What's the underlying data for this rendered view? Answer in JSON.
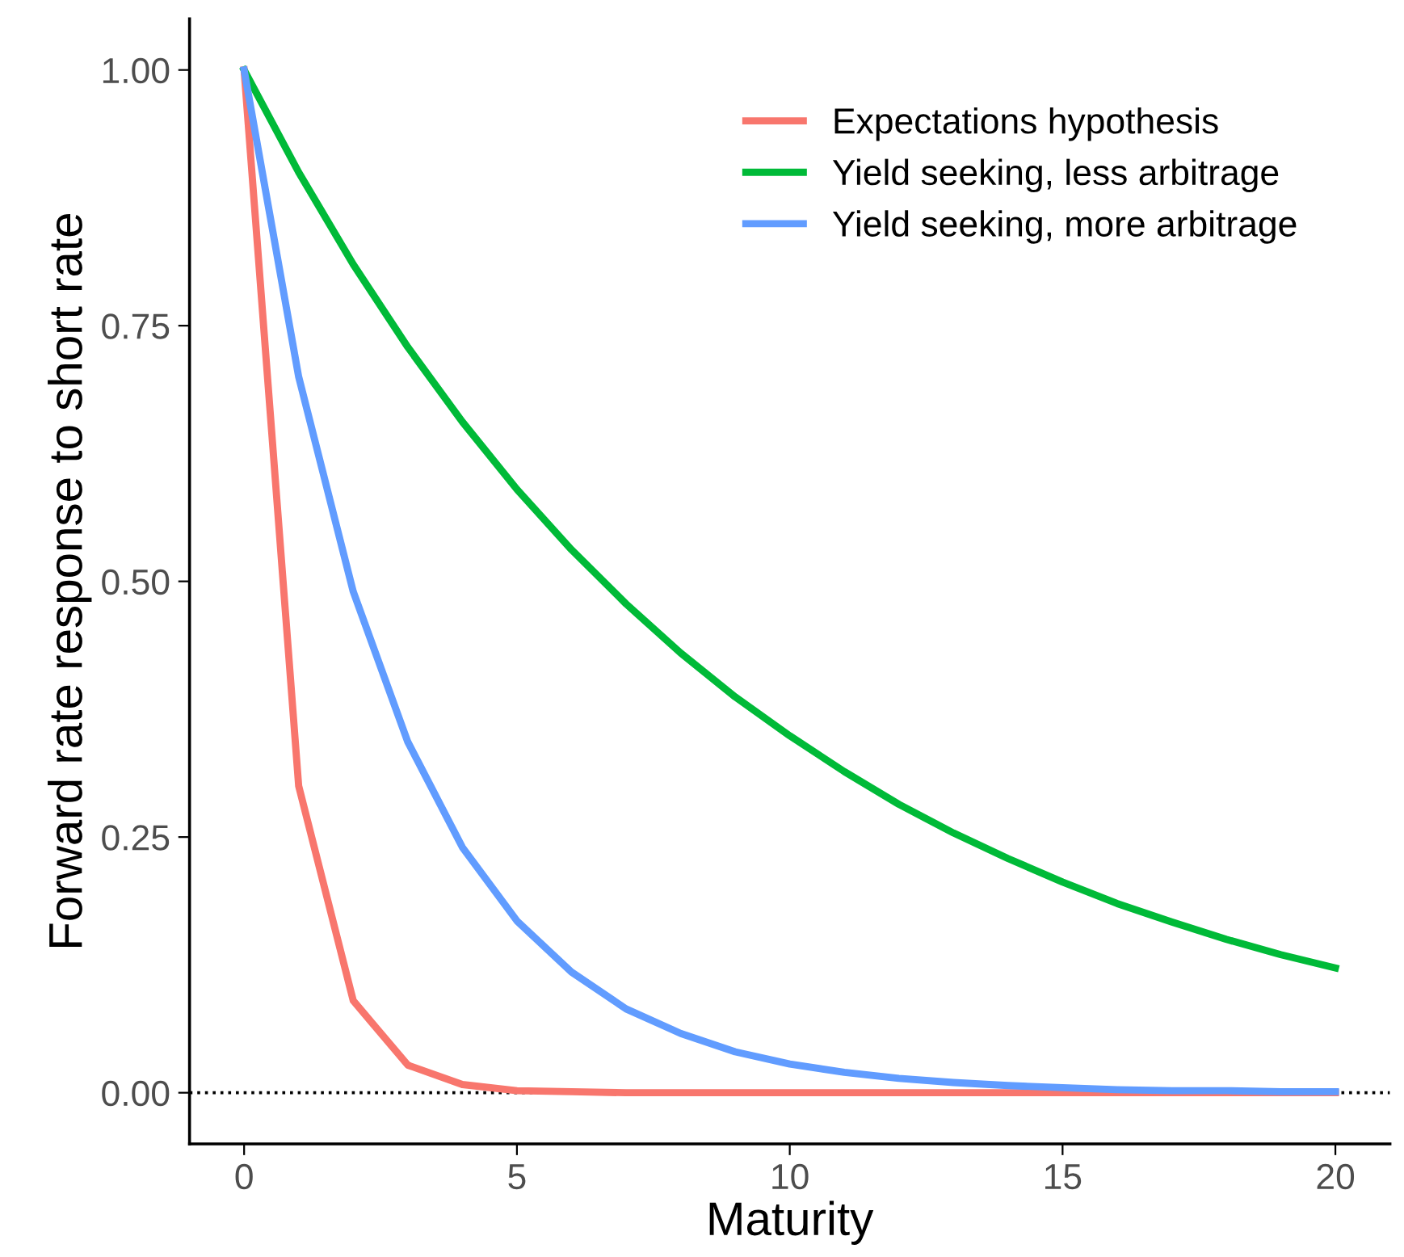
{
  "chart_data": {
    "type": "line",
    "xlabel": "Maturity",
    "ylabel": "Forward rate response to short rate",
    "x": [
      0,
      1,
      2,
      3,
      4,
      5,
      6,
      7,
      8,
      9,
      10,
      11,
      12,
      13,
      14,
      15,
      16,
      17,
      18,
      19,
      20
    ],
    "series": [
      {
        "name": "Expectations hypothesis",
        "color": "#f8766d",
        "values": [
          1,
          0.3,
          0.09,
          0.027,
          0.008,
          0.002,
          0.001,
          0,
          0,
          0,
          0,
          0,
          0,
          0,
          0,
          0,
          0,
          0,
          0,
          0,
          0
        ]
      },
      {
        "name": "Yield seeking, less arbitrage",
        "color": "#00ba38",
        "values": [
          1,
          0.9,
          0.81,
          0.729,
          0.656,
          0.59,
          0.531,
          0.478,
          0.43,
          0.387,
          0.349,
          0.314,
          0.282,
          0.254,
          0.229,
          0.206,
          0.185,
          0.167,
          0.15,
          0.135,
          0.122
        ]
      },
      {
        "name": "Yield seeking, more arbitrage",
        "color": "#619cff",
        "values": [
          1,
          0.7,
          0.49,
          0.343,
          0.24,
          0.168,
          0.118,
          0.082,
          0.058,
          0.04,
          0.028,
          0.02,
          0.014,
          0.01,
          0.007,
          0.005,
          0.003,
          0.002,
          0.002,
          0.001,
          0.001
        ]
      }
    ],
    "xlim": [
      -1,
      21
    ],
    "ylim": [
      -0.05,
      1.05
    ],
    "xticks": [
      0,
      5,
      10,
      15,
      20
    ],
    "yticks": [
      {
        "value": 0,
        "label": "0.00"
      },
      {
        "value": 0.25,
        "label": "0.25"
      },
      {
        "value": 0.5,
        "label": "0.50"
      },
      {
        "value": 0.75,
        "label": "0.75"
      },
      {
        "value": 1,
        "label": "1.00"
      }
    ],
    "ref_lines": [
      {
        "axis": "y",
        "value": 0,
        "color": "#000000",
        "line_style": "dotted"
      }
    ],
    "legend": "top right",
    "grid": false
  }
}
